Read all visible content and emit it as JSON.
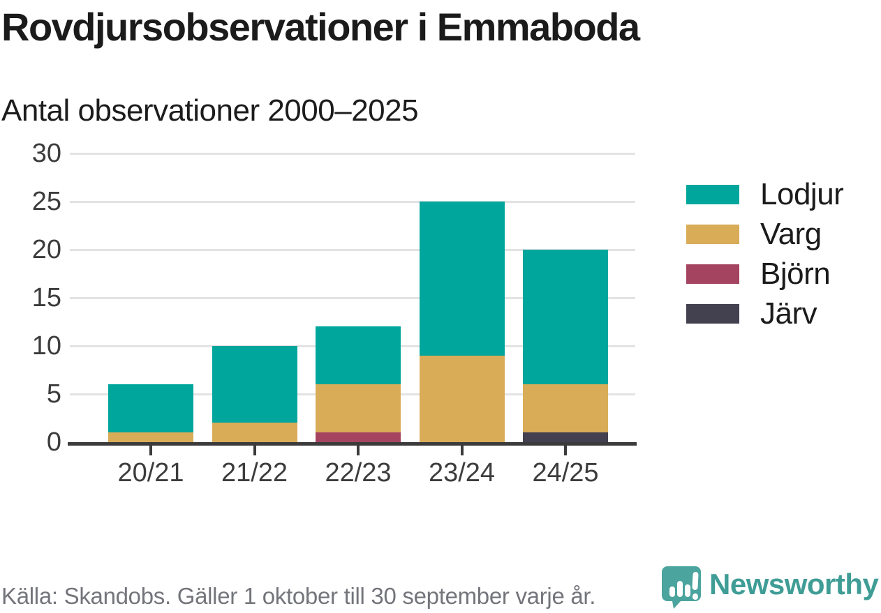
{
  "title": "Rovdjursobservationer i Emmaboda",
  "subtitle": "Antal observationer 2000–2025",
  "footer": {
    "source": "Källa: Skandobs. Gäller 1 oktober till 30 september varje år.",
    "brand": "Newsworthy"
  },
  "colors": {
    "lodjur": "#00a69c",
    "varg": "#d9ac58",
    "bjorn": "#a44461",
    "jarv": "#434050",
    "axis": "#3b3b3b",
    "grid": "#e3e3e3",
    "footer_text": "#73757b",
    "brand_teal": "#3f9d96",
    "logo_teal": "#4ba49d"
  },
  "chart_data": {
    "type": "bar",
    "stacked": true,
    "title": "Rovdjursobservationer i Emmaboda",
    "subtitle": "Antal observationer 2000–2025",
    "categories": [
      "20/21",
      "21/22",
      "22/23",
      "23/24",
      "24/25"
    ],
    "series": [
      {
        "name": "Lodjur",
        "color_key": "lodjur",
        "values": [
          5,
          8,
          6,
          16,
          14
        ]
      },
      {
        "name": "Varg",
        "color_key": "varg",
        "values": [
          1,
          2,
          5,
          9,
          5
        ]
      },
      {
        "name": "Björn",
        "color_key": "bjorn",
        "values": [
          0,
          0,
          1,
          0,
          0
        ]
      },
      {
        "name": "Järv",
        "color_key": "jarv",
        "values": [
          0,
          0,
          0,
          0,
          1
        ]
      }
    ],
    "totals": [
      6,
      10,
      12,
      25,
      20
    ],
    "xlabel": "",
    "ylabel": "",
    "ylim": [
      0,
      30
    ],
    "yticks": [
      0,
      5,
      10,
      15,
      20,
      25,
      30
    ],
    "grid": true,
    "legend_position": "right",
    "legend": [
      "Lodjur",
      "Varg",
      "Björn",
      "Järv"
    ]
  }
}
